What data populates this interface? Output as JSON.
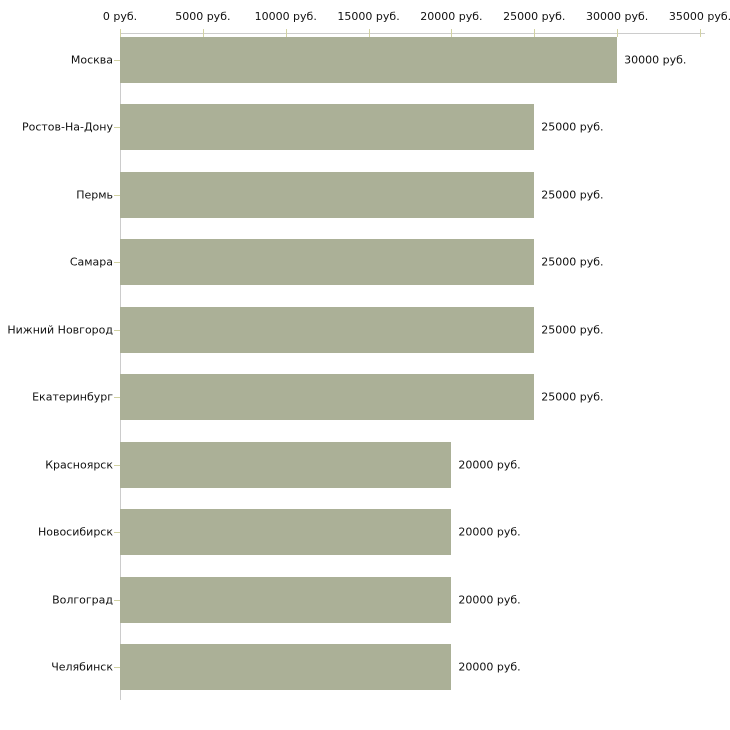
{
  "chart_data": {
    "type": "bar",
    "orientation": "horizontal",
    "title": "",
    "xlabel": "",
    "ylabel": "",
    "unit": "руб.",
    "categories": [
      "Москва",
      "Ростов-На-Дону",
      "Пермь",
      "Самара",
      "Нижний Новгород",
      "Екатеринбург",
      "Красноярск",
      "Новосибирск",
      "Волгоград",
      "Челябинск"
    ],
    "values": [
      30000,
      25000,
      25000,
      25000,
      25000,
      25000,
      20000,
      20000,
      20000,
      20000
    ],
    "bar_labels": [
      "30000 руб.",
      "25000 руб.",
      "25000 руб.",
      "25000 руб.",
      "25000 руб.",
      "25000 руб.",
      "20000 руб.",
      "20000 руб.",
      "20000 руб.",
      "20000 руб."
    ],
    "x_ticks": [
      0,
      5000,
      10000,
      15000,
      20000,
      25000,
      30000,
      35000
    ],
    "x_tick_labels": [
      "0 руб.",
      "5000 руб.",
      "10000 руб.",
      "15000 руб.",
      "20000 руб.",
      "25000 руб.",
      "30000 руб.",
      "35000 руб."
    ],
    "xlim": [
      0,
      35000
    ],
    "grid": false,
    "legend": false,
    "axis_position": "top",
    "colors": {
      "bar": "#abb097",
      "axis_line": "#cccccc",
      "tick_mark": "#d2d2a2",
      "text": "#111111",
      "background": "#ffffff"
    }
  }
}
